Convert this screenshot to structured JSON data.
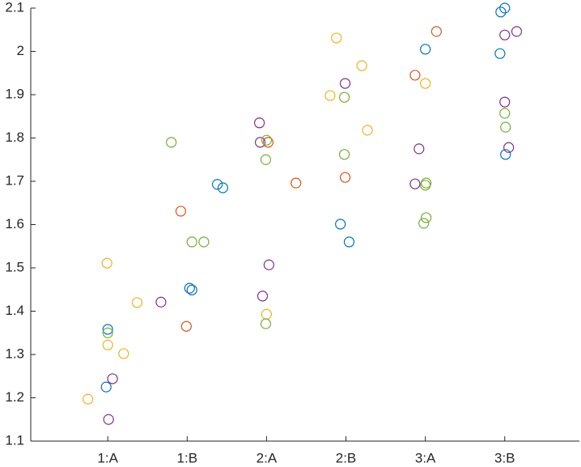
{
  "chart_data": {
    "type": "scatter",
    "xlim": [
      0.03,
      6.94
    ],
    "ylim": [
      1.1,
      2.1
    ],
    "xticks": [
      {
        "value": 1,
        "label": "1:A"
      },
      {
        "value": 2,
        "label": "1:B"
      },
      {
        "value": 3,
        "label": "2:A"
      },
      {
        "value": 4,
        "label": "2:B"
      },
      {
        "value": 5,
        "label": "3:A"
      },
      {
        "value": 6,
        "label": "3:B"
      }
    ],
    "yticks": [
      1.1,
      1.2,
      1.3,
      1.4,
      1.5,
      1.6,
      1.7,
      1.8,
      1.9,
      2,
      2.1
    ],
    "series": [
      {
        "color": "#0072BD",
        "x": [
          0.98,
          1.0,
          2.03,
          2.06,
          2.38,
          2.45,
          3.93,
          4.04,
          5.0,
          5.94,
          5.95,
          6.0,
          6.01
        ],
        "values": [
          1.225,
          1.358,
          1.453,
          1.449,
          1.693,
          1.685,
          1.601,
          1.56,
          2.005,
          1.995,
          2.091,
          2.1,
          1.762
        ]
      },
      {
        "color": "#D95319",
        "x": [
          1.92,
          1.99,
          3.02,
          3.37,
          3.99,
          4.87,
          5.14
        ],
        "values": [
          1.631,
          1.365,
          1.79,
          1.696,
          1.709,
          1.945,
          2.046
        ]
      },
      {
        "color": "#EDB120",
        "x": [
          0.75,
          0.99,
          1.0,
          1.2,
          1.37,
          3.0,
          3.8,
          3.88,
          4.2,
          4.27,
          5.0
        ],
        "values": [
          1.197,
          1.511,
          1.322,
          1.302,
          1.42,
          1.393,
          1.898,
          2.031,
          1.967,
          1.818,
          1.926
        ]
      },
      {
        "color": "#7E2F8E",
        "x": [
          1.06,
          1.01,
          1.67,
          2.91,
          2.92,
          2.95,
          3.03,
          3.99,
          4.87,
          4.92,
          6.0,
          6.15,
          6.0,
          6.05
        ],
        "values": [
          1.244,
          1.15,
          1.421,
          1.835,
          1.79,
          1.435,
          1.507,
          1.926,
          1.694,
          1.775,
          2.038,
          2.046,
          1.883,
          1.778
        ]
      },
      {
        "color": "#77AC30",
        "x": [
          1.0,
          1.8,
          2.06,
          2.21,
          3.0,
          2.99,
          2.99,
          3.98,
          3.98,
          5.01,
          5.0,
          5.01,
          4.98,
          6.0,
          6.01
        ],
        "values": [
          1.35,
          1.79,
          1.56,
          1.56,
          1.795,
          1.75,
          1.371,
          1.894,
          1.762,
          1.696,
          1.691,
          1.616,
          1.603,
          1.857,
          1.825
        ]
      }
    ]
  }
}
